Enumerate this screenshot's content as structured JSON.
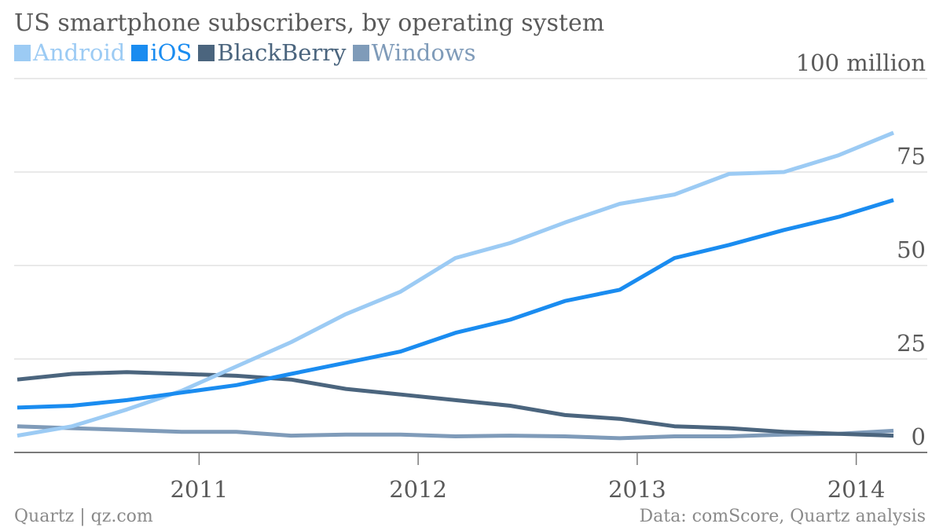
{
  "chart_data": {
    "type": "line",
    "title": "US smartphone subscribers, by operating system",
    "ylabel": "",
    "xlabel": "",
    "y_unit_label": "100 million",
    "ylim": [
      0,
      100
    ],
    "y_ticks": [
      {
        "value": 0,
        "label": "0"
      },
      {
        "value": 25,
        "label": "25"
      },
      {
        "value": 50,
        "label": "50"
      },
      {
        "value": 75,
        "label": "75"
      },
      {
        "value": 100,
        "label": "100 million"
      }
    ],
    "x_ticks": [
      {
        "value": 2011,
        "label": "2011"
      },
      {
        "value": 2012,
        "label": "2012"
      },
      {
        "value": 2013,
        "label": "2013"
      },
      {
        "value": 2014,
        "label": "2014"
      }
    ],
    "xlim": [
      2010.15,
      2014.33
    ],
    "grid": true,
    "legend_placement": "top-left",
    "x": [
      2010.17,
      2010.42,
      2010.67,
      2010.92,
      2011.17,
      2011.42,
      2011.67,
      2011.92,
      2012.17,
      2012.42,
      2012.67,
      2012.92,
      2013.17,
      2013.42,
      2013.67,
      2013.92,
      2014.17
    ],
    "series": [
      {
        "name": "Android",
        "color": "#9ccbf4",
        "values": [
          4.5,
          7,
          11.5,
          16.5,
          23,
          29.5,
          37,
          43,
          52,
          56,
          61.5,
          66.5,
          69,
          74.5,
          75,
          79.5,
          85.5
        ]
      },
      {
        "name": "iOS",
        "color": "#1a8cf0",
        "values": [
          12,
          12.5,
          14,
          16,
          18,
          21,
          24,
          27,
          32,
          35.5,
          40.5,
          43.5,
          52,
          55.5,
          59.5,
          63,
          67.5
        ]
      },
      {
        "name": "BlackBerry",
        "color": "#4b657e",
        "values": [
          19.5,
          21,
          21.5,
          21,
          20.5,
          19.5,
          17,
          15.5,
          14,
          12.5,
          10,
          9,
          7,
          6.5,
          5.5,
          5,
          4.5
        ]
      },
      {
        "name": "Windows",
        "color": "#7f9bb9",
        "values": [
          7,
          6.5,
          6,
          5.5,
          5.5,
          4.5,
          4.8,
          4.8,
          4.3,
          4.5,
          4.3,
          3.8,
          4.3,
          4.3,
          4.8,
          5,
          5.8
        ]
      }
    ]
  },
  "footer": {
    "source_left": "Quartz | qz.com",
    "source_right": "Data: comScore, Quartz analysis"
  }
}
